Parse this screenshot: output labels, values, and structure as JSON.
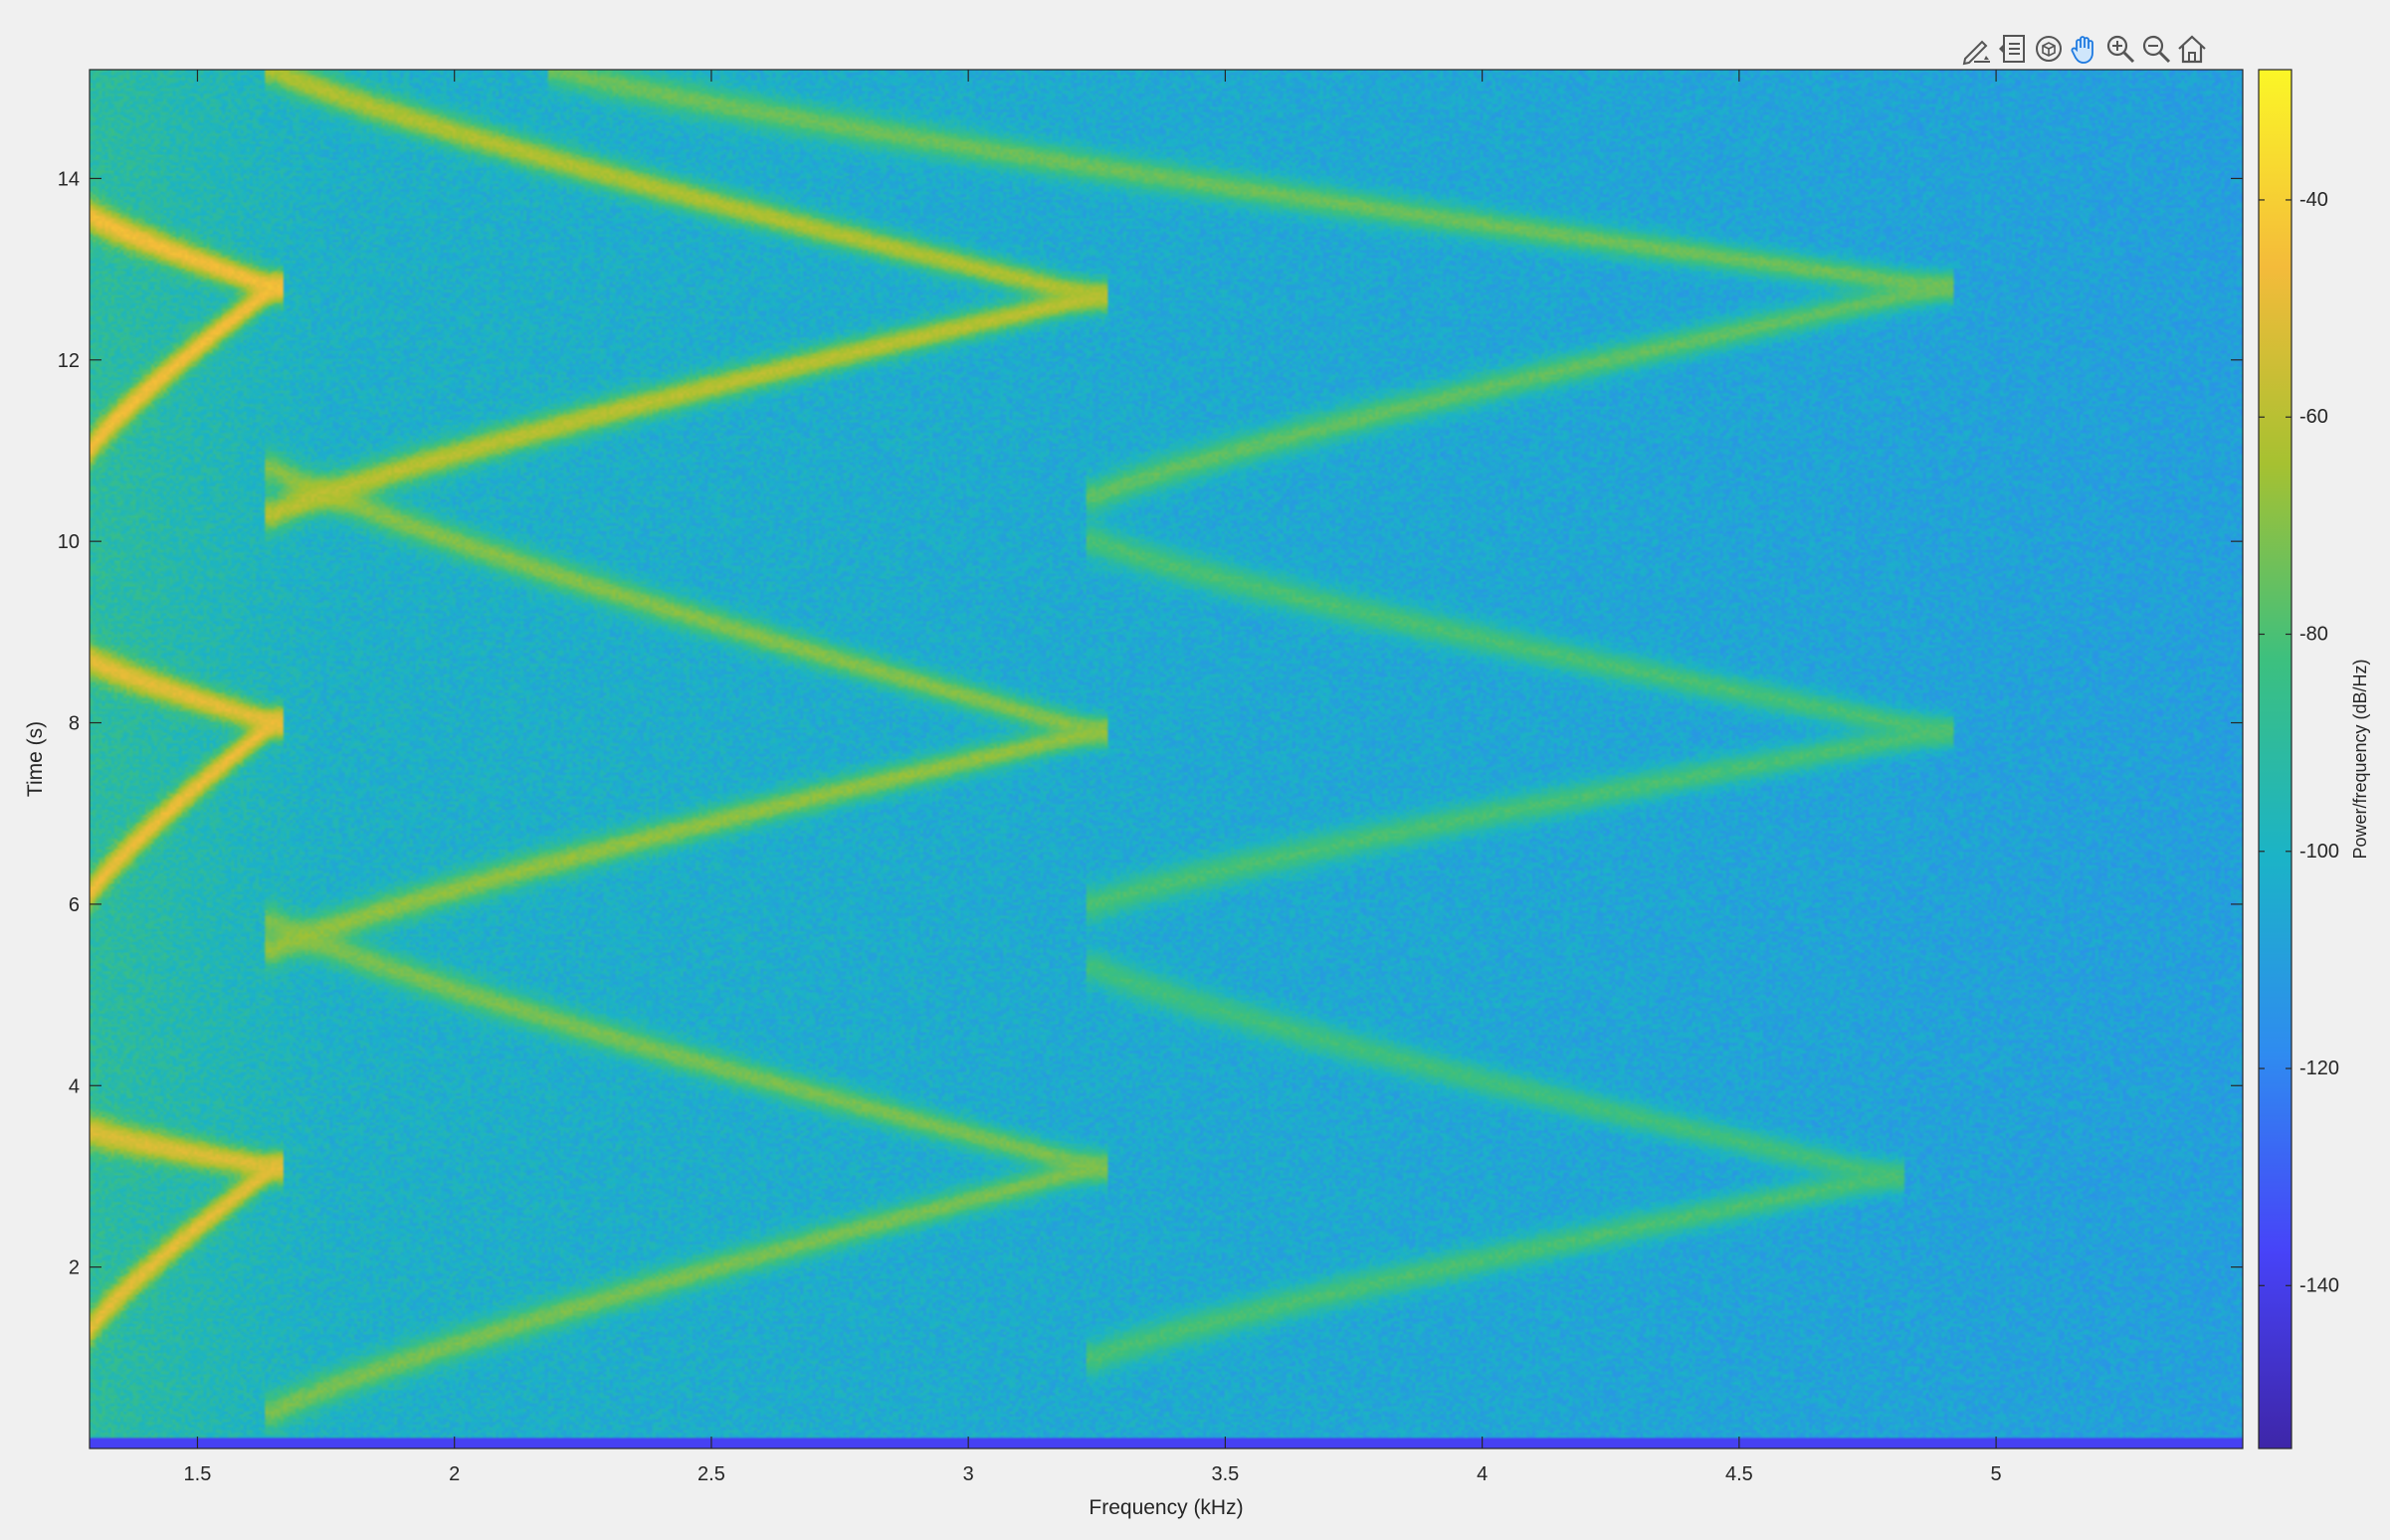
{
  "toolbar": {
    "buttons": [
      {
        "name": "edit-plot-icon",
        "label": ""
      },
      {
        "name": "legend-icon",
        "label": ""
      },
      {
        "name": "rotate-3d-icon",
        "label": ""
      },
      {
        "name": "pan-hand-icon",
        "label": ""
      },
      {
        "name": "zoom-in-icon",
        "label": ""
      },
      {
        "name": "zoom-out-icon",
        "label": ""
      },
      {
        "name": "home-icon",
        "label": ""
      }
    ],
    "active": "pan-hand-icon"
  },
  "colors": {
    "background": "#f0f0f0",
    "axes_frame": "#262626",
    "colormap": [
      "#3e26a8",
      "#4743f8",
      "#2f8bf0",
      "#1bb3c7",
      "#3cc07f",
      "#a6c131",
      "#f4bb3a",
      "#fbf627"
    ]
  },
  "chart_data": {
    "type": "heatmap",
    "title": "",
    "xlabel": "Frequency (kHz)",
    "ylabel": "Time (s)",
    "xlim": [
      1.29,
      5.48
    ],
    "ylim": [
      0,
      15.2
    ],
    "xticks": [
      1.5,
      2,
      2.5,
      3,
      3.5,
      4,
      4.5,
      5
    ],
    "xtick_labels": [
      "1.5",
      "2",
      "2.5",
      "3",
      "3.5",
      "4",
      "4.5",
      "5"
    ],
    "yticks": [
      2,
      4,
      6,
      8,
      10,
      12,
      14
    ],
    "ytick_labels": [
      "2",
      "4",
      "6",
      "8",
      "10",
      "12",
      "14"
    ],
    "grid": false,
    "colorbar": {
      "label": "Power/frequency (dB/Hz)",
      "range": [
        -155,
        -28
      ],
      "ticks": [
        -140,
        -120,
        -100,
        -80,
        -60,
        -40
      ],
      "tick_labels": [
        "-140",
        "-120",
        "-100",
        "-80",
        "-60",
        "-40"
      ]
    },
    "background_level_db": -100,
    "chirp_tracks": [
      {
        "f_start_khz": 1.29,
        "t_start_s": 1.3,
        "f_end_khz": 1.65,
        "t_end_s": 3.1,
        "level_db": -50
      },
      {
        "f_start_khz": 1.29,
        "t_start_s": 3.5,
        "f_end_khz": 1.65,
        "t_end_s": 3.1,
        "level_db": -52
      },
      {
        "f_start_khz": 1.65,
        "t_start_s": 0.4,
        "f_end_khz": 3.25,
        "t_end_s": 3.1,
        "level_db": -72
      },
      {
        "f_start_khz": 1.65,
        "t_start_s": 5.8,
        "f_end_khz": 3.25,
        "t_end_s": 3.1,
        "level_db": -72
      },
      {
        "f_start_khz": 3.25,
        "t_start_s": 1.0,
        "f_end_khz": 4.8,
        "t_end_s": 3.0,
        "level_db": -80
      },
      {
        "f_start_khz": 3.25,
        "t_start_s": 5.3,
        "f_end_khz": 4.8,
        "t_end_s": 3.0,
        "level_db": -82
      },
      {
        "f_start_khz": 1.29,
        "t_start_s": 6.1,
        "f_end_khz": 1.65,
        "t_end_s": 8.0,
        "level_db": -48
      },
      {
        "f_start_khz": 1.29,
        "t_start_s": 8.7,
        "f_end_khz": 1.65,
        "t_end_s": 8.0,
        "level_db": -50
      },
      {
        "f_start_khz": 1.65,
        "t_start_s": 5.5,
        "f_end_khz": 3.25,
        "t_end_s": 7.9,
        "level_db": -68
      },
      {
        "f_start_khz": 1.65,
        "t_start_s": 10.8,
        "f_end_khz": 3.25,
        "t_end_s": 7.9,
        "level_db": -70
      },
      {
        "f_start_khz": 3.25,
        "t_start_s": 6.0,
        "f_end_khz": 4.9,
        "t_end_s": 7.9,
        "level_db": -80
      },
      {
        "f_start_khz": 3.25,
        "t_start_s": 10.0,
        "f_end_khz": 4.9,
        "t_end_s": 7.9,
        "level_db": -80
      },
      {
        "f_start_khz": 1.29,
        "t_start_s": 11.0,
        "f_end_khz": 1.65,
        "t_end_s": 12.8,
        "level_db": -46
      },
      {
        "f_start_khz": 1.29,
        "t_start_s": 13.6,
        "f_end_khz": 1.65,
        "t_end_s": 12.8,
        "level_db": -46
      },
      {
        "f_start_khz": 1.65,
        "t_start_s": 10.3,
        "f_end_khz": 3.25,
        "t_end_s": 12.7,
        "level_db": -60
      },
      {
        "f_start_khz": 1.65,
        "t_start_s": 15.2,
        "f_end_khz": 3.25,
        "t_end_s": 12.7,
        "level_db": -62
      },
      {
        "f_start_khz": 3.25,
        "t_start_s": 10.5,
        "f_end_khz": 4.9,
        "t_end_s": 12.8,
        "level_db": -76
      },
      {
        "f_start_khz": 2.2,
        "t_start_s": 15.2,
        "f_end_khz": 4.9,
        "t_end_s": 12.8,
        "level_db": -74
      }
    ]
  }
}
